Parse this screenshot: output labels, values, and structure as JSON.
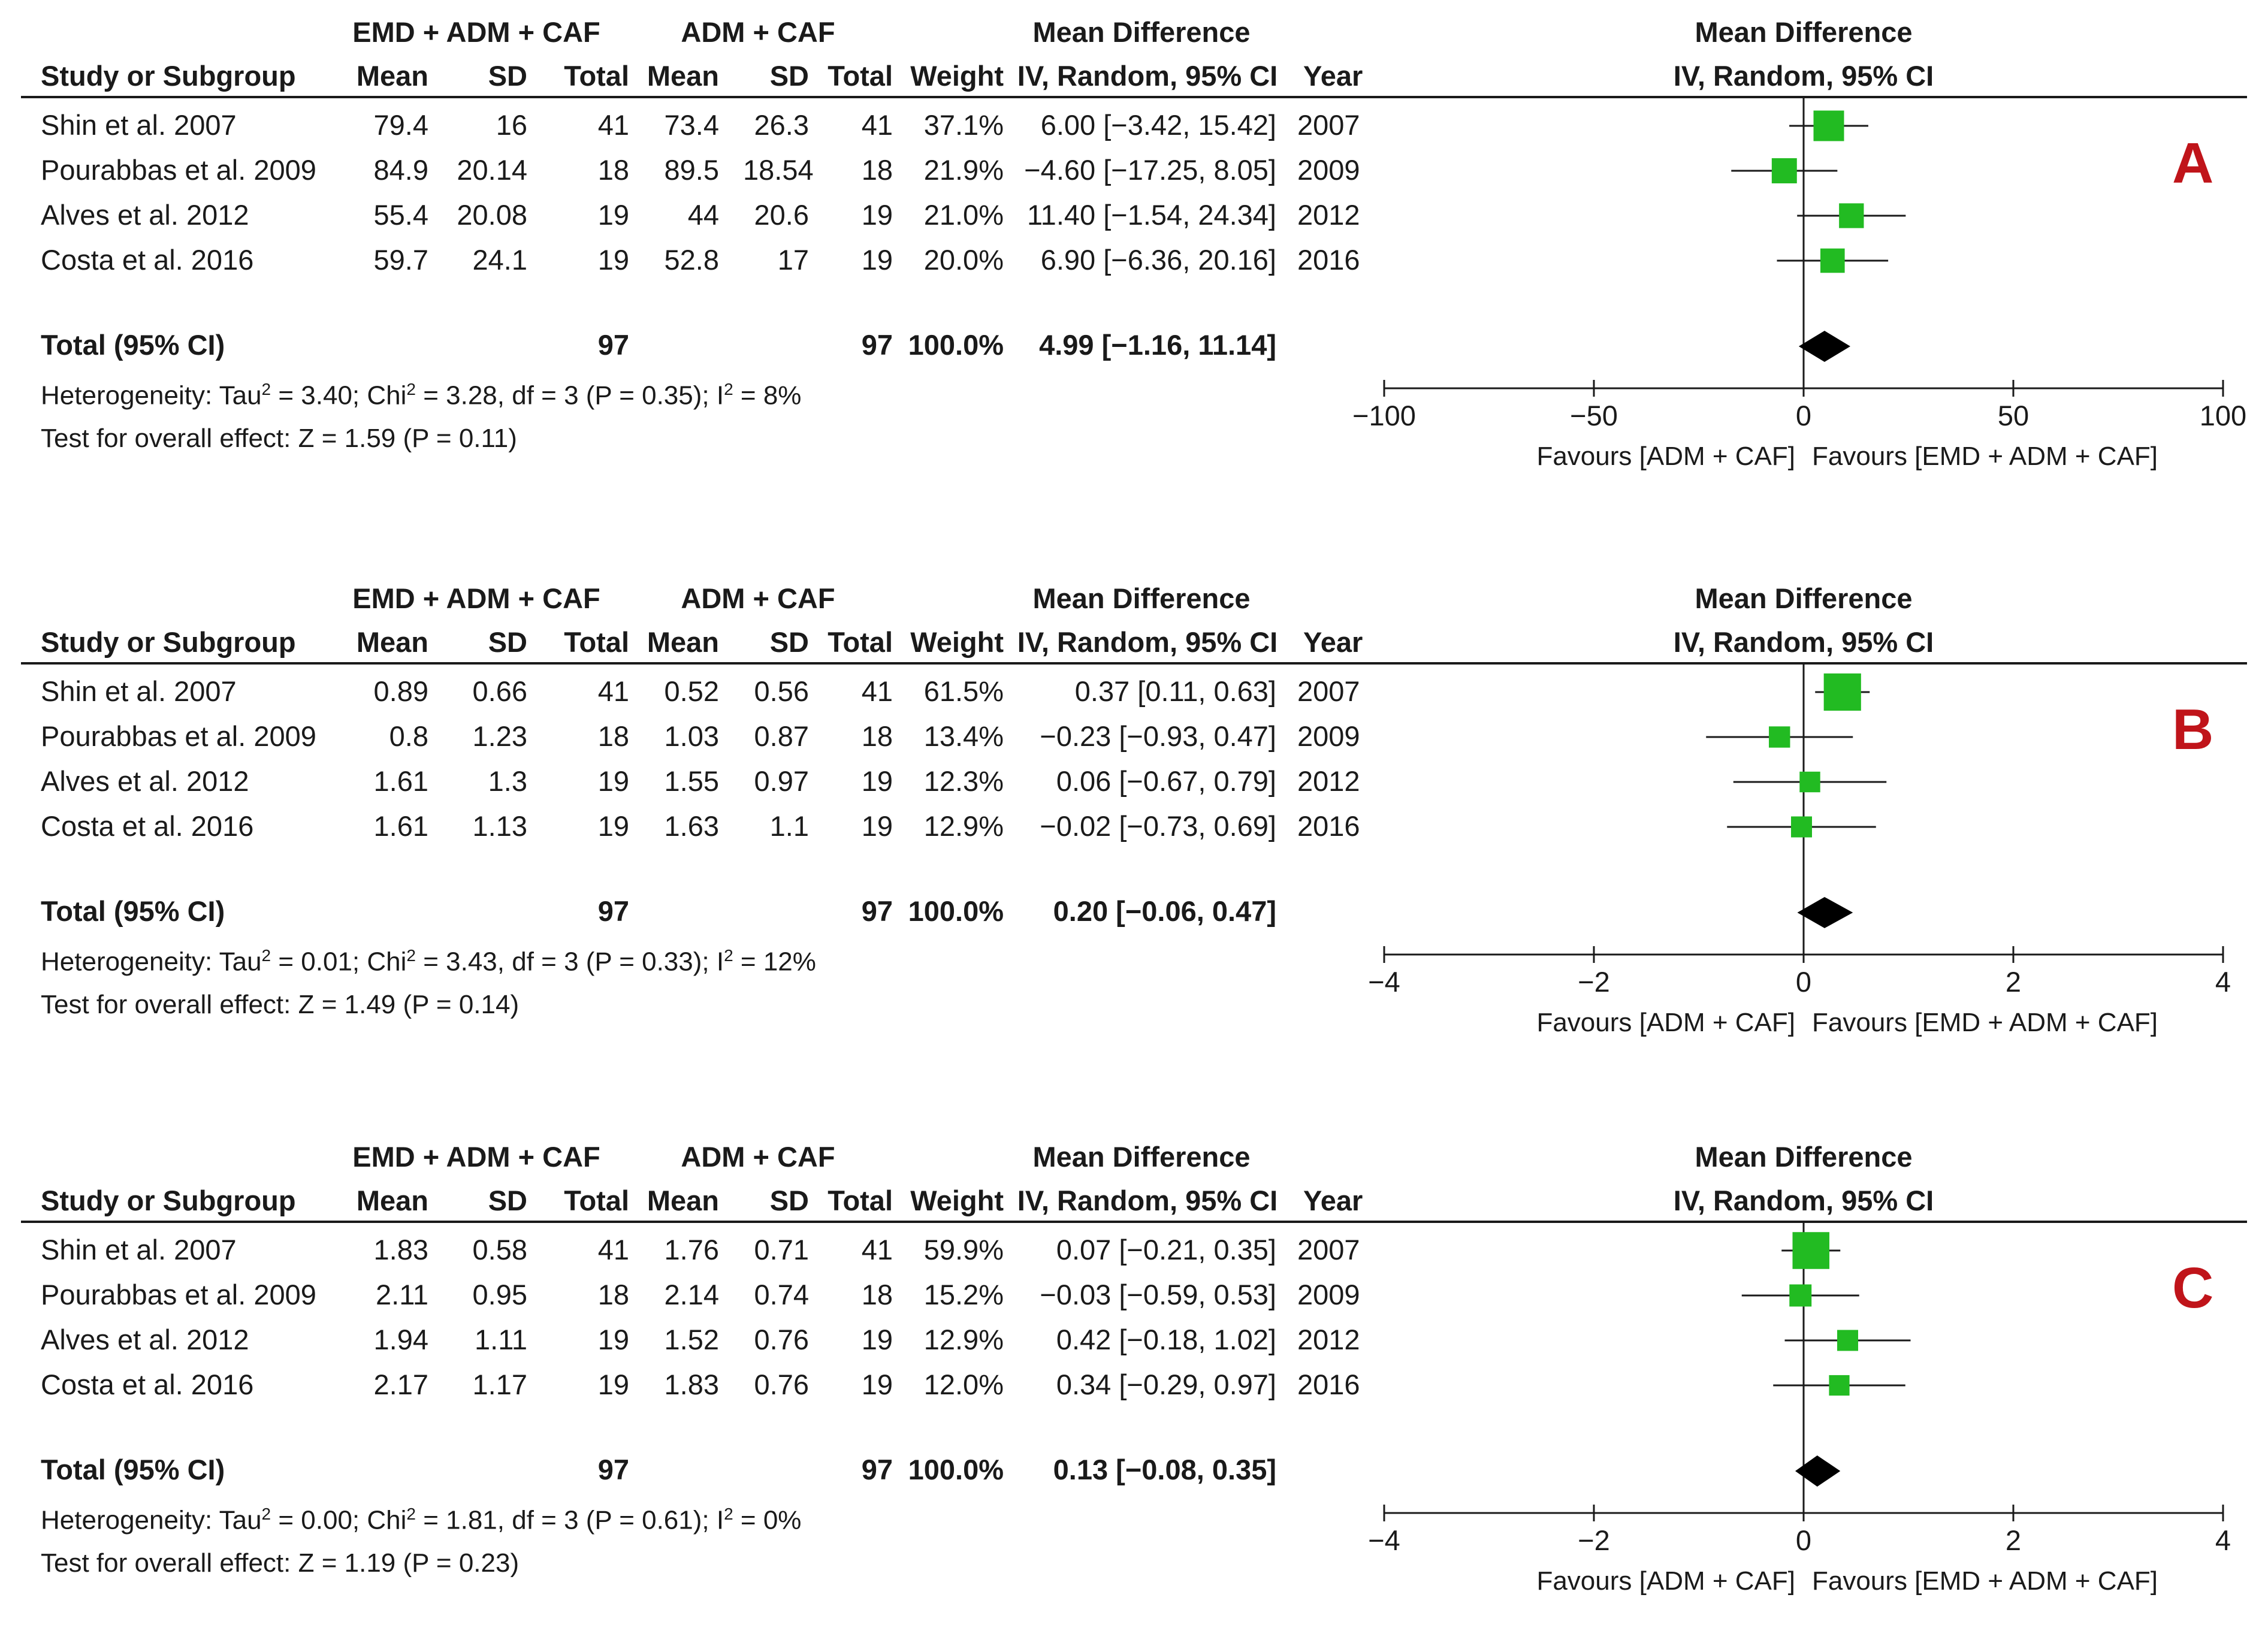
{
  "labels": {
    "group_exp": "EMD + ADM + CAF",
    "group_ctrl": "ADM + CAF",
    "md_header": "Mean Difference",
    "md_subheader": "IV, Random, 95% CI",
    "study_col": "Study or Subgroup",
    "mean": "Mean",
    "sd": "SD",
    "total": "Total",
    "weight": "Weight",
    "year": "Year",
    "total_row": "Total (95% CI)",
    "favours_left": "Favours [ADM + CAF]",
    "favours_right": "Favours [EMD + ADM + CAF]"
  },
  "panels": [
    {
      "letter": "A",
      "rows": [
        {
          "study": "Shin et al. 2007",
          "m1": "79.4",
          "sd1": "16",
          "n1": "41",
          "m2": "73.4",
          "sd2": "26.3",
          "n2": "41",
          "weight": "37.1%",
          "ci": "6.00 [−3.42, 15.42]",
          "year": "2007"
        },
        {
          "study": "Pourabbas et al. 2009",
          "m1": "84.9",
          "sd1": "20.14",
          "n1": "18",
          "m2": "89.5",
          "sd2": "18.54",
          "n2": "18",
          "weight": "21.9%",
          "ci": "−4.60 [−17.25, 8.05]",
          "year": "2009"
        },
        {
          "study": "Alves et al. 2012",
          "m1": "55.4",
          "sd1": "20.08",
          "n1": "19",
          "m2": "44",
          "sd2": "20.6",
          "n2": "19",
          "weight": "21.0%",
          "ci": "11.40 [−1.54, 24.34]",
          "year": "2012"
        },
        {
          "study": "Costa et al. 2016",
          "m1": "59.7",
          "sd1": "24.1",
          "n1": "19",
          "m2": "52.8",
          "sd2": "17",
          "n2": "19",
          "weight": "20.0%",
          "ci": "6.90 [−6.36, 20.16]",
          "year": "2016"
        }
      ],
      "total": {
        "n1": "97",
        "n2": "97",
        "weight": "100.0%",
        "ci": "4.99 [−1.16, 11.14]"
      },
      "het_pre": "Heterogeneity: Tau",
      "het_tau": "3.40",
      "het_chi": "3.28, df = 3 (P = 0.35); I",
      "het_i2": "8%",
      "overall": "Test for overall effect: Z = 1.59 (P = 0.11)"
    },
    {
      "letter": "B",
      "rows": [
        {
          "study": "Shin et al. 2007",
          "m1": "0.89",
          "sd1": "0.66",
          "n1": "41",
          "m2": "0.52",
          "sd2": "0.56",
          "n2": "41",
          "weight": "61.5%",
          "ci": "0.37 [0.11, 0.63]",
          "year": "2007"
        },
        {
          "study": "Pourabbas et al. 2009",
          "m1": "0.8",
          "sd1": "1.23",
          "n1": "18",
          "m2": "1.03",
          "sd2": "0.87",
          "n2": "18",
          "weight": "13.4%",
          "ci": "−0.23 [−0.93, 0.47]",
          "year": "2009"
        },
        {
          "study": "Alves et al. 2012",
          "m1": "1.61",
          "sd1": "1.3",
          "n1": "19",
          "m2": "1.55",
          "sd2": "0.97",
          "n2": "19",
          "weight": "12.3%",
          "ci": "0.06 [−0.67, 0.79]",
          "year": "2012"
        },
        {
          "study": "Costa et al. 2016",
          "m1": "1.61",
          "sd1": "1.13",
          "n1": "19",
          "m2": "1.63",
          "sd2": "1.1",
          "n2": "19",
          "weight": "12.9%",
          "ci": "−0.02 [−0.73, 0.69]",
          "year": "2016"
        }
      ],
      "total": {
        "n1": "97",
        "n2": "97",
        "weight": "100.0%",
        "ci": "0.20 [−0.06, 0.47]"
      },
      "het_pre": "Heterogeneity: Tau",
      "het_tau": "0.01",
      "het_chi": "3.43, df = 3 (P = 0.33); I",
      "het_i2": "12%",
      "overall": "Test for overall effect: Z = 1.49 (P = 0.14)"
    },
    {
      "letter": "C",
      "rows": [
        {
          "study": "Shin et al. 2007",
          "m1": "1.83",
          "sd1": "0.58",
          "n1": "41",
          "m2": "1.76",
          "sd2": "0.71",
          "n2": "41",
          "weight": "59.9%",
          "ci": "0.07 [−0.21, 0.35]",
          "year": "2007"
        },
        {
          "study": "Pourabbas et al. 2009",
          "m1": "2.11",
          "sd1": "0.95",
          "n1": "18",
          "m2": "2.14",
          "sd2": "0.74",
          "n2": "18",
          "weight": "15.2%",
          "ci": "−0.03 [−0.59, 0.53]",
          "year": "2009"
        },
        {
          "study": "Alves et al. 2012",
          "m1": "1.94",
          "sd1": "1.11",
          "n1": "19",
          "m2": "1.52",
          "sd2": "0.76",
          "n2": "19",
          "weight": "12.9%",
          "ci": "0.42 [−0.18, 1.02]",
          "year": "2012"
        },
        {
          "study": "Costa et al. 2016",
          "m1": "2.17",
          "sd1": "1.17",
          "n1": "19",
          "m2": "1.83",
          "sd2": "0.76",
          "n2": "19",
          "weight": "12.0%",
          "ci": "0.34 [−0.29, 0.97]",
          "year": "2016"
        }
      ],
      "total": {
        "n1": "97",
        "n2": "97",
        "weight": "100.0%",
        "ci": "0.13 [−0.08, 0.35]"
      },
      "het_pre": "Heterogeneity: Tau",
      "het_tau": "0.00",
      "het_chi": "1.81, df = 3 (P = 0.61); I",
      "het_i2": "0%",
      "overall": "Test for overall effect: Z = 1.19 (P = 0.23)"
    }
  ],
  "chart_data": [
    {
      "type": "forest",
      "panel": "A",
      "title": "Mean Difference IV, Random, 95% CI",
      "xlim": [
        -100,
        100
      ],
      "xticks": [
        -100,
        -50,
        0,
        50,
        100
      ],
      "xtick_labels": [
        "−100",
        "−50",
        "0",
        "50",
        "100"
      ],
      "xlabel_left": "Favours [ADM + CAF]",
      "xlabel_right": "Favours [EMD + ADM + CAF]",
      "studies": [
        {
          "name": "Shin et al. 2007",
          "md": 6.0,
          "lo": -3.42,
          "hi": 15.42,
          "weight": 37.1
        },
        {
          "name": "Pourabbas et al. 2009",
          "md": -4.6,
          "lo": -17.25,
          "hi": 8.05,
          "weight": 21.9
        },
        {
          "name": "Alves et al. 2012",
          "md": 11.4,
          "lo": -1.54,
          "hi": 24.34,
          "weight": 21.0
        },
        {
          "name": "Costa et al. 2016",
          "md": 6.9,
          "lo": -6.36,
          "hi": 20.16,
          "weight": 20.0
        }
      ],
      "pooled": {
        "md": 4.99,
        "lo": -1.16,
        "hi": 11.14
      }
    },
    {
      "type": "forest",
      "panel": "B",
      "title": "Mean Difference IV, Random, 95% CI",
      "xlim": [
        -4,
        4
      ],
      "xticks": [
        -4,
        -2,
        0,
        2,
        4
      ],
      "xtick_labels": [
        "−4",
        "−2",
        "0",
        "2",
        "4"
      ],
      "xlabel_left": "Favours [ADM + CAF]",
      "xlabel_right": "Favours [EMD + ADM + CAF]",
      "studies": [
        {
          "name": "Shin et al. 2007",
          "md": 0.37,
          "lo": 0.11,
          "hi": 0.63,
          "weight": 61.5
        },
        {
          "name": "Pourabbas et al. 2009",
          "md": -0.23,
          "lo": -0.93,
          "hi": 0.47,
          "weight": 13.4
        },
        {
          "name": "Alves et al. 2012",
          "md": 0.06,
          "lo": -0.67,
          "hi": 0.79,
          "weight": 12.3
        },
        {
          "name": "Costa et al. 2016",
          "md": -0.02,
          "lo": -0.73,
          "hi": 0.69,
          "weight": 12.9
        }
      ],
      "pooled": {
        "md": 0.2,
        "lo": -0.06,
        "hi": 0.47
      }
    },
    {
      "type": "forest",
      "panel": "C",
      "title": "Mean Difference IV, Random, 95% CI",
      "xlim": [
        -4,
        4
      ],
      "xticks": [
        -4,
        -2,
        0,
        2,
        4
      ],
      "xtick_labels": [
        "−4",
        "−2",
        "0",
        "2",
        "4"
      ],
      "xlabel_left": "Favours [ADM + CAF]",
      "xlabel_right": "Favours [EMD + ADM + CAF]",
      "studies": [
        {
          "name": "Shin et al. 2007",
          "md": 0.07,
          "lo": -0.21,
          "hi": 0.35,
          "weight": 59.9
        },
        {
          "name": "Pourabbas et al. 2009",
          "md": -0.03,
          "lo": -0.59,
          "hi": 0.53,
          "weight": 15.2
        },
        {
          "name": "Alves et al. 2012",
          "md": 0.42,
          "lo": -0.18,
          "hi": 1.02,
          "weight": 12.9
        },
        {
          "name": "Costa et al. 2016",
          "md": 0.34,
          "lo": -0.29,
          "hi": 0.97,
          "weight": 12.0
        }
      ],
      "pooled": {
        "md": 0.13,
        "lo": -0.08,
        "hi": 0.35
      }
    }
  ],
  "colors": {
    "marker": "#22bb22",
    "diamond": "#000000",
    "letter": "#c0141a"
  }
}
